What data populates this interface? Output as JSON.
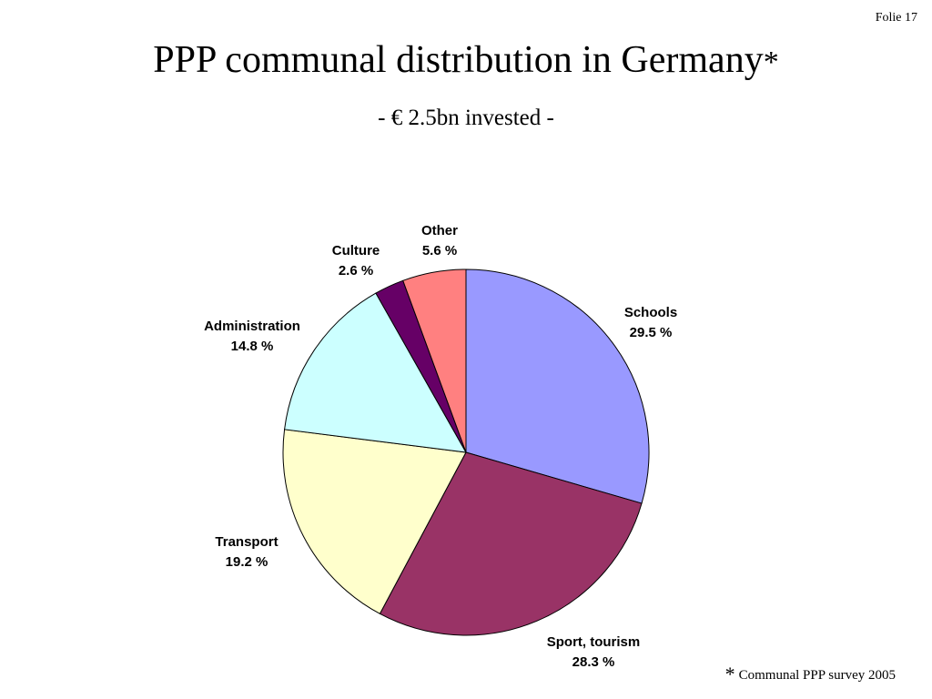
{
  "slide": {
    "number_label": "Folie 17"
  },
  "footnote": {
    "marker": "*",
    "text": "Communal PPP survey 2005"
  },
  "chart_data": {
    "type": "pie",
    "title": "PPP communal distribution in Germany",
    "title_marker": "*",
    "subtitle": "- € 2.5bn invested -",
    "unit": "%",
    "start": "12 o'clock",
    "direction": "clockwise",
    "slices": [
      {
        "label": "Schools",
        "value": 29.5,
        "value_label": "29.5 %",
        "color": "#9999ff"
      },
      {
        "label": "Sport, tourism",
        "value": 28.3,
        "value_label": "28.3 %",
        "color": "#993366"
      },
      {
        "label": "Transport",
        "value": 19.2,
        "value_label": "19.2 %",
        "color": "#ffffcc"
      },
      {
        "label": "Administration",
        "value": 14.8,
        "value_label": "14.8 %",
        "color": "#ccffff"
      },
      {
        "label": "Culture",
        "value": 2.6,
        "value_label": "2.6 %",
        "color": "#660066"
      },
      {
        "label": "Other",
        "value": 5.6,
        "value_label": "5.6 %",
        "color": "#ff8080"
      }
    ]
  }
}
